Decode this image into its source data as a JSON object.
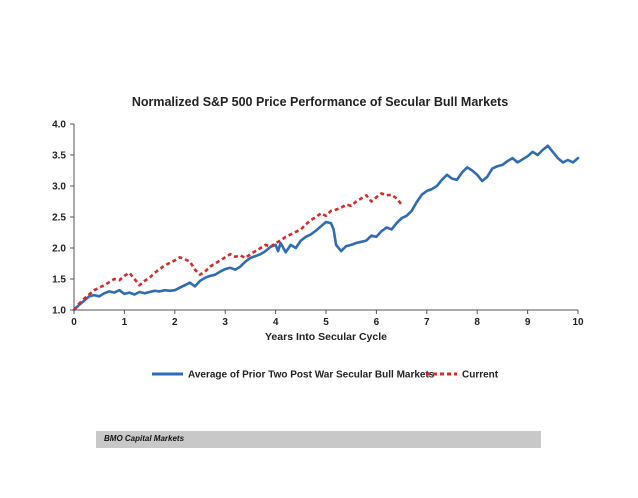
{
  "chart_data": {
    "type": "line",
    "title": "Normalized S&P 500 Price Performance of Secular Bull Markets",
    "xlabel": "Years Into Secular Cycle",
    "ylabel": "",
    "xlim": [
      0,
      10
    ],
    "ylim": [
      1.0,
      4.0
    ],
    "x_ticks": [
      "0",
      "1",
      "2",
      "3",
      "4",
      "5",
      "6",
      "7",
      "8",
      "9",
      "10"
    ],
    "y_ticks": [
      "1.0",
      "1.5",
      "2.0",
      "2.5",
      "3.0",
      "3.5",
      "4.0"
    ],
    "grid": false,
    "legend_position": "bottom",
    "series": [
      {
        "name": "Average of Prior Two Post War Secular Bull Markets",
        "color": "#2e6db4",
        "style": "solid",
        "x": [
          0,
          0.1,
          0.2,
          0.3,
          0.4,
          0.5,
          0.6,
          0.7,
          0.8,
          0.9,
          1.0,
          1.1,
          1.2,
          1.3,
          1.4,
          1.5,
          1.6,
          1.7,
          1.8,
          1.9,
          2.0,
          2.1,
          2.2,
          2.3,
          2.4,
          2.5,
          2.6,
          2.7,
          2.8,
          2.9,
          3.0,
          3.1,
          3.2,
          3.3,
          3.4,
          3.5,
          3.6,
          3.7,
          3.8,
          3.9,
          4.0,
          4.05,
          4.1,
          4.2,
          4.3,
          4.4,
          4.5,
          4.6,
          4.7,
          4.8,
          4.9,
          5.0,
          5.1,
          5.15,
          5.2,
          5.3,
          5.4,
          5.5,
          5.6,
          5.7,
          5.8,
          5.9,
          6.0,
          6.1,
          6.2,
          6.3,
          6.4,
          6.5,
          6.6,
          6.7,
          6.8,
          6.9,
          7.0,
          7.1,
          7.2,
          7.3,
          7.4,
          7.5,
          7.6,
          7.7,
          7.8,
          7.9,
          8.0,
          8.1,
          8.2,
          8.3,
          8.4,
          8.5,
          8.6,
          8.7,
          8.8,
          8.9,
          9.0,
          9.1,
          9.2,
          9.3,
          9.4,
          9.5,
          9.6,
          9.7,
          9.8,
          9.9,
          10.0
        ],
        "values": [
          1.0,
          1.08,
          1.15,
          1.22,
          1.24,
          1.22,
          1.27,
          1.3,
          1.28,
          1.32,
          1.26,
          1.28,
          1.25,
          1.29,
          1.27,
          1.29,
          1.31,
          1.3,
          1.32,
          1.31,
          1.32,
          1.36,
          1.4,
          1.44,
          1.38,
          1.47,
          1.52,
          1.55,
          1.57,
          1.62,
          1.66,
          1.68,
          1.65,
          1.7,
          1.78,
          1.84,
          1.87,
          1.9,
          1.95,
          2.02,
          2.05,
          1.95,
          2.08,
          1.93,
          2.05,
          2.0,
          2.12,
          2.18,
          2.22,
          2.28,
          2.35,
          2.42,
          2.4,
          2.3,
          2.05,
          1.95,
          2.03,
          2.05,
          2.08,
          2.1,
          2.12,
          2.2,
          2.18,
          2.27,
          2.33,
          2.3,
          2.4,
          2.48,
          2.52,
          2.6,
          2.74,
          2.86,
          2.92,
          2.95,
          3.0,
          3.1,
          3.18,
          3.12,
          3.1,
          3.22,
          3.3,
          3.25,
          3.18,
          3.08,
          3.15,
          3.28,
          3.32,
          3.34,
          3.4,
          3.45,
          3.38,
          3.43,
          3.48,
          3.55,
          3.5,
          3.58,
          3.65,
          3.55,
          3.45,
          3.38,
          3.42,
          3.38,
          3.45
        ]
      },
      {
        "name": "Current",
        "color": "#d42b2b",
        "style": "dashed",
        "x": [
          0,
          0.1,
          0.2,
          0.3,
          0.4,
          0.5,
          0.6,
          0.7,
          0.8,
          0.9,
          1.0,
          1.1,
          1.2,
          1.3,
          1.4,
          1.5,
          1.6,
          1.7,
          1.8,
          1.9,
          2.0,
          2.1,
          2.2,
          2.3,
          2.4,
          2.5,
          2.6,
          2.7,
          2.8,
          2.9,
          3.0,
          3.1,
          3.2,
          3.3,
          3.4,
          3.5,
          3.6,
          3.7,
          3.8,
          3.9,
          4.0,
          4.1,
          4.2,
          4.3,
          4.4,
          4.5,
          4.6,
          4.7,
          4.8,
          4.9,
          5.0,
          5.1,
          5.2,
          5.3,
          5.4,
          5.5,
          5.6,
          5.7,
          5.8,
          5.9,
          6.0,
          6.1,
          6.2,
          6.3,
          6.4,
          6.5
        ],
        "values": [
          1.0,
          1.1,
          1.18,
          1.25,
          1.32,
          1.36,
          1.4,
          1.45,
          1.5,
          1.48,
          1.55,
          1.6,
          1.5,
          1.4,
          1.47,
          1.52,
          1.6,
          1.66,
          1.72,
          1.76,
          1.8,
          1.85,
          1.82,
          1.78,
          1.65,
          1.57,
          1.62,
          1.7,
          1.75,
          1.8,
          1.85,
          1.9,
          1.86,
          1.88,
          1.84,
          1.9,
          1.95,
          2.0,
          2.05,
          2.02,
          2.08,
          2.12,
          2.18,
          2.22,
          2.26,
          2.3,
          2.38,
          2.45,
          2.5,
          2.56,
          2.52,
          2.6,
          2.62,
          2.65,
          2.7,
          2.68,
          2.75,
          2.8,
          2.85,
          2.75,
          2.82,
          2.88,
          2.85,
          2.86,
          2.8,
          2.7
        ]
      }
    ]
  },
  "source": "BMO Capital Markets"
}
